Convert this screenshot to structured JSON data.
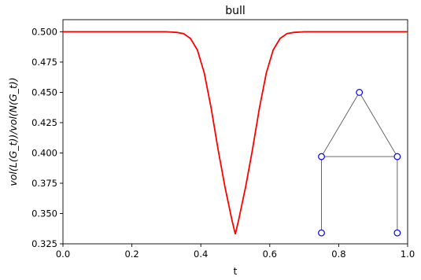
{
  "chart_data": {
    "type": "line",
    "title": "bull",
    "xlabel": "t",
    "ylabel": "vol(L(G_t))/vol(N(G_t))",
    "xlim": [
      0.0,
      1.0
    ],
    "ylim": [
      0.325,
      0.51
    ],
    "x_ticks": [
      "0.0",
      "0.2",
      "0.4",
      "0.6",
      "0.8",
      "1.0"
    ],
    "y_ticks": [
      "0.325",
      "0.350",
      "0.375",
      "0.400",
      "0.425",
      "0.450",
      "0.475",
      "0.500"
    ],
    "grid": false,
    "legend": "none",
    "series": [
      {
        "color": "#ff0000",
        "x": [
          0.0,
          0.3,
          0.33,
          0.35,
          0.37,
          0.39,
          0.41,
          0.43,
          0.45,
          0.47,
          0.49,
          0.5,
          0.51,
          0.53,
          0.55,
          0.57,
          0.59,
          0.61,
          0.63,
          0.65,
          0.67,
          0.7,
          1.0
        ],
        "y": [
          0.5,
          0.5,
          0.4995,
          0.4985,
          0.4945,
          0.485,
          0.466,
          0.437,
          0.403,
          0.372,
          0.345,
          0.333,
          0.345,
          0.372,
          0.403,
          0.437,
          0.466,
          0.485,
          0.4945,
          0.4985,
          0.4995,
          0.5,
          0.5
        ]
      }
    ],
    "inset_graph": {
      "name": "bull",
      "node_color": "#0000ff",
      "edge_color": "#555555",
      "nodes": [
        {
          "id": "top",
          "x": 0.86,
          "y": 0.45
        },
        {
          "id": "left",
          "x": 0.75,
          "y": 0.397
        },
        {
          "id": "right",
          "x": 0.97,
          "y": 0.397
        },
        {
          "id": "left-horn",
          "x": 0.75,
          "y": 0.334
        },
        {
          "id": "right-horn",
          "x": 0.97,
          "y": 0.334
        }
      ],
      "edges": [
        [
          "top",
          "left"
        ],
        [
          "top",
          "right"
        ],
        [
          "left",
          "right"
        ],
        [
          "left",
          "left-horn"
        ],
        [
          "right",
          "right-horn"
        ]
      ]
    }
  }
}
